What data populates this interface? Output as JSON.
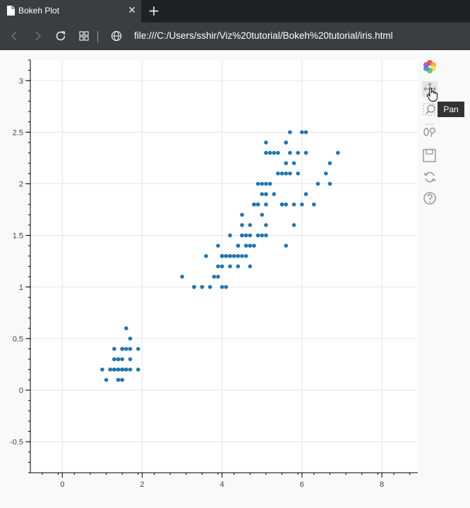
{
  "browser": {
    "tab_title": "Bokeh Plot",
    "url": "file:///C:/Users/sshir/Viz%20tutorial/Bokeh%20tutorial/iris.html"
  },
  "toolbar": {
    "tools": [
      "bokeh-logo-icon",
      "pan-icon",
      "box-zoom-icon",
      "wheel-zoom-icon",
      "save-icon",
      "reset-icon",
      "help-icon"
    ],
    "tooltip": "Pan"
  },
  "chart_data": {
    "type": "scatter",
    "title": "",
    "xlabel": "",
    "ylabel": "",
    "xlim": [
      -0.8,
      8.9
    ],
    "ylim": [
      -0.8,
      3.2
    ],
    "x_ticks": [
      "0",
      "2",
      "4",
      "6",
      "8"
    ],
    "y_ticks": [
      "-0.5",
      "0",
      "0.5",
      "1",
      "1.5",
      "2",
      "2.5",
      "3"
    ],
    "grid": true,
    "marker_color": "#1f77b4",
    "x": [
      1.4,
      1.4,
      1.3,
      1.5,
      1.4,
      1.7,
      1.4,
      1.5,
      1.4,
      1.5,
      1.5,
      1.6,
      1.4,
      1.1,
      1.2,
      1.5,
      1.3,
      1.4,
      1.7,
      1.5,
      1.7,
      1.5,
      1.0,
      1.7,
      1.9,
      1.6,
      1.6,
      1.5,
      1.4,
      1.6,
      1.6,
      1.5,
      1.5,
      1.4,
      1.5,
      1.2,
      1.3,
      1.4,
      1.3,
      1.5,
      1.3,
      1.3,
      1.3,
      1.6,
      1.9,
      1.4,
      1.6,
      1.4,
      1.5,
      1.4,
      4.7,
      4.5,
      4.9,
      4.0,
      4.6,
      4.5,
      4.7,
      3.3,
      4.6,
      3.9,
      3.5,
      4.2,
      4.0,
      4.7,
      3.6,
      4.4,
      4.5,
      4.1,
      4.5,
      3.9,
      4.8,
      4.0,
      4.9,
      4.7,
      4.3,
      4.4,
      4.8,
      5.0,
      4.5,
      3.5,
      3.8,
      3.7,
      3.9,
      5.1,
      4.5,
      4.5,
      4.7,
      4.4,
      4.1,
      4.0,
      4.4,
      4.6,
      4.0,
      3.3,
      4.2,
      4.2,
      4.2,
      4.3,
      3.0,
      4.1,
      6.0,
      5.1,
      5.9,
      5.6,
      5.8,
      6.6,
      4.5,
      6.3,
      5.8,
      6.1,
      5.1,
      5.3,
      5.5,
      5.0,
      5.1,
      5.3,
      5.5,
      6.7,
      6.9,
      5.0,
      5.7,
      4.9,
      6.7,
      4.9,
      5.7,
      6.0,
      4.8,
      4.9,
      5.6,
      5.8,
      6.1,
      6.4,
      5.6,
      5.1,
      5.6,
      6.1,
      5.6,
      5.5,
      4.8,
      5.4,
      5.6,
      5.1,
      5.1,
      5.9,
      5.7,
      5.2,
      5.0,
      5.2,
      5.4,
      5.1
    ],
    "y": [
      0.2,
      0.2,
      0.2,
      0.2,
      0.2,
      0.4,
      0.3,
      0.2,
      0.2,
      0.1,
      0.2,
      0.2,
      0.1,
      0.1,
      0.2,
      0.4,
      0.4,
      0.3,
      0.3,
      0.3,
      0.2,
      0.4,
      0.2,
      0.5,
      0.2,
      0.2,
      0.4,
      0.2,
      0.2,
      0.2,
      0.2,
      0.4,
      0.1,
      0.2,
      0.2,
      0.2,
      0.2,
      0.1,
      0.2,
      0.2,
      0.3,
      0.3,
      0.2,
      0.6,
      0.4,
      0.3,
      0.2,
      0.2,
      0.2,
      0.2,
      1.4,
      1.5,
      1.5,
      1.3,
      1.5,
      1.3,
      1.6,
      1.0,
      1.3,
      1.4,
      1.0,
      1.5,
      1.0,
      1.4,
      1.3,
      1.4,
      1.5,
      1.0,
      1.5,
      1.1,
      1.8,
      1.3,
      1.5,
      1.2,
      1.3,
      1.4,
      1.4,
      1.7,
      1.5,
      1.0,
      1.1,
      1.0,
      1.2,
      1.6,
      1.5,
      1.6,
      1.5,
      1.3,
      1.3,
      1.3,
      1.2,
      1.4,
      1.2,
      1.0,
      1.3,
      1.2,
      1.3,
      1.3,
      1.1,
      1.3,
      2.5,
      1.9,
      2.1,
      1.8,
      2.2,
      2.1,
      1.7,
      1.8,
      1.8,
      2.5,
      2.0,
      1.9,
      2.1,
      2.0,
      2.4,
      2.3,
      1.8,
      2.2,
      2.3,
      1.5,
      2.3,
      2.0,
      2.0,
      1.8,
      2.1,
      1.8,
      1.8,
      1.8,
      2.1,
      1.6,
      1.9,
      2.0,
      2.2,
      1.5,
      1.4,
      2.3,
      2.4,
      1.8,
      1.8,
      2.1,
      2.4,
      2.3,
      1.9,
      2.3,
      2.5,
      2.3,
      1.9,
      2.0,
      2.3,
      1.8
    ]
  }
}
